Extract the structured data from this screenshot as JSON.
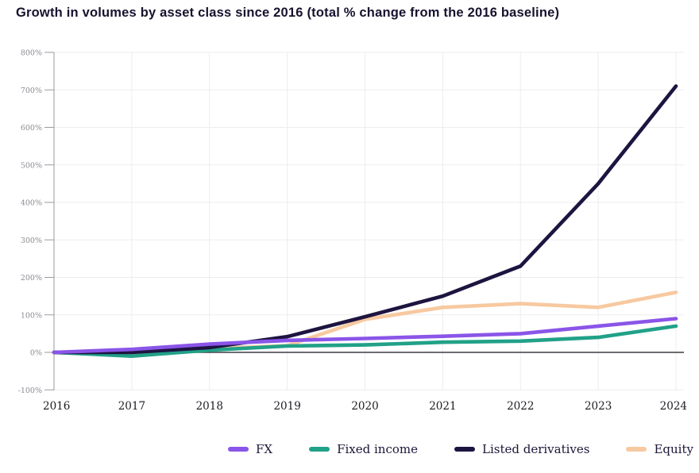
{
  "page": {
    "title": "Growth in volumes by asset class since 2016 (total % change from the 2016 baseline)"
  },
  "chart_data": {
    "type": "line",
    "title": "Growth in volumes by asset class since 2016 (total % change from the 2016 baseline)",
    "x": [
      2016,
      2017,
      2018,
      2019,
      2020,
      2021,
      2022,
      2023,
      2024
    ],
    "series": [
      {
        "name": "FX",
        "color": "#8a55e8",
        "values": [
          0,
          8,
          22,
          32,
          37,
          43,
          50,
          70,
          90
        ]
      },
      {
        "name": "Fixed income",
        "color": "#21a188",
        "values": [
          0,
          -10,
          6,
          17,
          20,
          27,
          30,
          40,
          70
        ]
      },
      {
        "name": "Listed derivatives",
        "color": "#1d1440",
        "values": [
          0,
          0,
          13,
          42,
          95,
          150,
          230,
          450,
          710
        ]
      },
      {
        "name": "Equity",
        "color": "#f7c9a0",
        "values": [
          0,
          -5,
          10,
          18,
          88,
          120,
          130,
          120,
          160
        ]
      }
    ],
    "ylim": [
      -100,
      800
    ],
    "yticks": [
      800,
      700,
      600,
      500,
      400,
      300,
      200,
      100,
      0,
      -100
    ],
    "ytick_suffix": "%",
    "grid": true,
    "zero_line": true,
    "legend_position": "bottom"
  },
  "colors": {
    "title_text": "#18122e",
    "legend_text": "#1b1638",
    "grid_line": "#ededf1",
    "axis_line": "#9a9aa2",
    "zero_line": "#3c3c44",
    "ytick_text": "#8b8b93",
    "xtick_text": "#1c1c22",
    "background": "#ffffff"
  }
}
